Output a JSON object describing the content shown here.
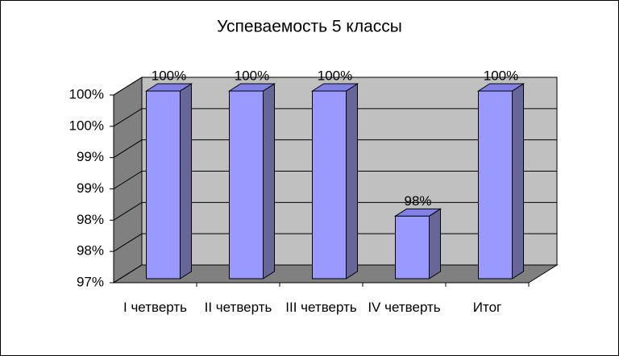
{
  "chart_data": {
    "type": "bar3d",
    "title": "Успеваемость 5 классы",
    "categories": [
      "I четверть",
      "II четверть",
      "III четверть",
      "IV четверть",
      "Итог"
    ],
    "values": [
      100,
      100,
      100,
      98,
      100
    ],
    "value_labels": [
      "100%",
      "100%",
      "100%",
      "98%",
      "100%"
    ],
    "color": "#9999ff",
    "ylim": [
      97,
      100
    ],
    "yticks": [
      {
        "value": 97,
        "label": "97%"
      },
      {
        "value": 97.5,
        "label": "98%"
      },
      {
        "value": 98,
        "label": "98%"
      },
      {
        "value": 98.5,
        "label": "99%"
      },
      {
        "value": 99,
        "label": "99%"
      },
      {
        "value": 99.5,
        "label": "100%"
      },
      {
        "value": 100,
        "label": "100%"
      }
    ],
    "grid": true
  }
}
